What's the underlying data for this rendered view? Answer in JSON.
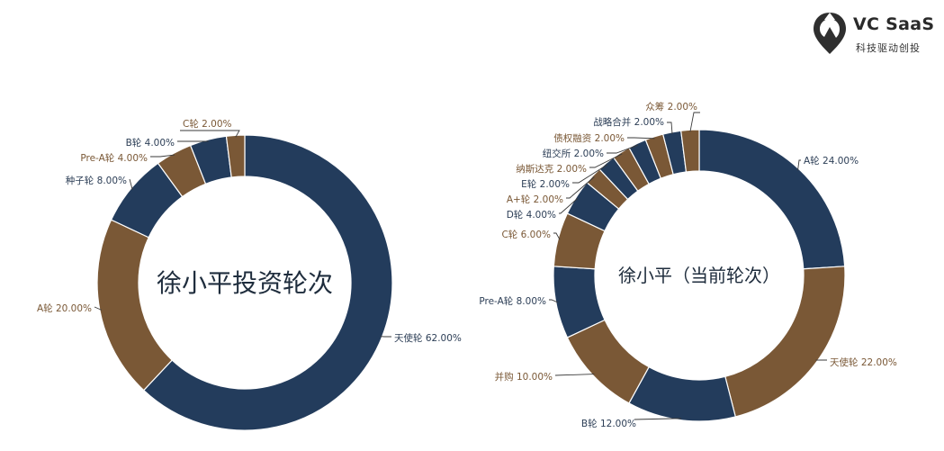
{
  "brand": {
    "name": "VC SaaS",
    "tagline": "科技驱动创投",
    "icon": "location-pin-logo-icon"
  },
  "colors": {
    "navy": "#233c5c",
    "brown": "#7a5836",
    "navy_text": "#2c3e56",
    "brown_text": "#7a5836",
    "leader": "#3a3a3a"
  },
  "chart_data": [
    {
      "type": "pie",
      "donut": true,
      "title": "徐小平投资轮次",
      "slices": [
        {
          "label": "天使轮",
          "value": 62.0,
          "display": "62.00%",
          "color": "navy"
        },
        {
          "label": "A轮",
          "value": 20.0,
          "display": "20.00%",
          "color": "brown"
        },
        {
          "label": "种子轮",
          "value": 8.0,
          "display": "8.00%",
          "color": "navy"
        },
        {
          "label": "Pre-A轮",
          "value": 4.0,
          "display": "4.00%",
          "color": "brown"
        },
        {
          "label": "B轮",
          "value": 4.0,
          "display": "4.00%",
          "color": "navy"
        },
        {
          "label": "C轮",
          "value": 2.0,
          "display": "2.00%",
          "color": "brown"
        }
      ]
    },
    {
      "type": "pie",
      "donut": true,
      "title": "徐小平（当前轮次）",
      "slices": [
        {
          "label": "A轮",
          "value": 24.0,
          "display": "24.00%",
          "color": "navy"
        },
        {
          "label": "天使轮",
          "value": 22.0,
          "display": "22.00%",
          "color": "brown"
        },
        {
          "label": "B轮",
          "value": 12.0,
          "display": "12.00%",
          "color": "navy"
        },
        {
          "label": "并购",
          "value": 10.0,
          "display": "10.00%",
          "color": "brown"
        },
        {
          "label": "Pre-A轮",
          "value": 8.0,
          "display": "8.00%",
          "color": "navy"
        },
        {
          "label": "C轮",
          "value": 6.0,
          "display": "6.00%",
          "color": "brown"
        },
        {
          "label": "D轮",
          "value": 4.0,
          "display": "4.00%",
          "color": "navy"
        },
        {
          "label": "A+轮",
          "value": 2.0,
          "display": "2.00%",
          "color": "brown"
        },
        {
          "label": "E轮",
          "value": 2.0,
          "display": "2.00%",
          "color": "navy"
        },
        {
          "label": "纳斯达克",
          "value": 2.0,
          "display": "2.00%",
          "color": "brown"
        },
        {
          "label": "纽交所",
          "value": 2.0,
          "display": "2.00%",
          "color": "navy"
        },
        {
          "label": "债权融资",
          "value": 2.0,
          "display": "2.00%",
          "color": "brown"
        },
        {
          "label": "战略合并",
          "value": 2.0,
          "display": "2.00%",
          "color": "navy"
        },
        {
          "label": "众筹",
          "value": 2.0,
          "display": "2.00%",
          "color": "brown"
        }
      ]
    }
  ]
}
